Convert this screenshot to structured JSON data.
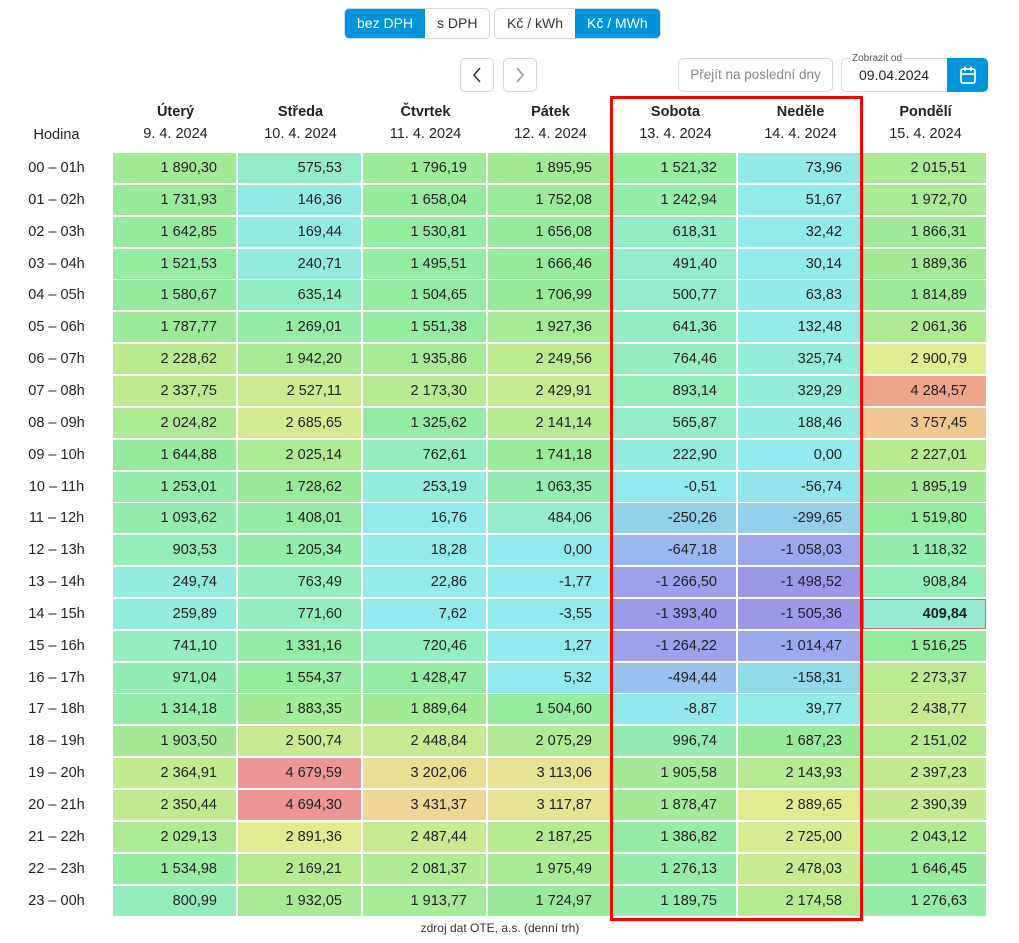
{
  "toolbar": {
    "vat": [
      {
        "label": "bez DPH",
        "active": true
      },
      {
        "label": "s DPH",
        "active": false
      }
    ],
    "unit": [
      {
        "label": "Kč / kWh",
        "active": false
      },
      {
        "label": "Kč / MWh",
        "active": true
      }
    ],
    "goto_latest": "Přejít na poslední dny",
    "date_label": "Zobrazit od",
    "date_value": "09.04.2024"
  },
  "table": {
    "hour_header": "Hodina",
    "days": [
      {
        "name": "Úterý",
        "date": "9. 4. 2024"
      },
      {
        "name": "Středa",
        "date": "10. 4. 2024"
      },
      {
        "name": "Čtvrtek",
        "date": "11. 4. 2024"
      },
      {
        "name": "Pátek",
        "date": "12. 4. 2024"
      },
      {
        "name": "Sobota",
        "date": "13. 4. 2024"
      },
      {
        "name": "Neděle",
        "date": "14. 4. 2024"
      },
      {
        "name": "Pondělí",
        "date": "15. 4. 2024"
      }
    ],
    "hours": [
      "00 – 01h",
      "01 – 02h",
      "02 – 03h",
      "03 – 04h",
      "04 – 05h",
      "05 – 06h",
      "06 – 07h",
      "07 – 08h",
      "08 – 09h",
      "09 – 10h",
      "10 – 11h",
      "11 – 12h",
      "12 – 13h",
      "13 – 14h",
      "14 – 15h",
      "15 – 16h",
      "16 – 17h",
      "17 – 18h",
      "18 – 19h",
      "19 – 20h",
      "20 – 21h",
      "21 – 22h",
      "22 – 23h",
      "23 – 00h"
    ],
    "rows": [
      [
        "1 890,30",
        "575,53",
        "1 796,19",
        "1 895,95",
        "1 521,32",
        "73,96",
        "2 015,51"
      ],
      [
        "1 731,93",
        "146,36",
        "1 658,04",
        "1 752,08",
        "1 242,94",
        "51,67",
        "1 972,70"
      ],
      [
        "1 642,85",
        "169,44",
        "1 530,81",
        "1 656,08",
        "618,31",
        "32,42",
        "1 866,31"
      ],
      [
        "1 521,53",
        "240,71",
        "1 495,51",
        "1 666,46",
        "491,40",
        "30,14",
        "1 889,36"
      ],
      [
        "1 580,67",
        "635,14",
        "1 504,65",
        "1 706,99",
        "500,77",
        "63,83",
        "1 814,89"
      ],
      [
        "1 787,77",
        "1 269,01",
        "1 551,38",
        "1 927,36",
        "641,36",
        "132,48",
        "2 061,36"
      ],
      [
        "2 228,62",
        "1 942,20",
        "1 935,86",
        "2 249,56",
        "764,46",
        "325,74",
        "2 900,79"
      ],
      [
        "2 337,75",
        "2 527,11",
        "2 173,30",
        "2 429,91",
        "893,14",
        "329,29",
        "4 284,57"
      ],
      [
        "2 024,82",
        "2 685,65",
        "1 325,62",
        "2 141,14",
        "565,87",
        "188,46",
        "3 757,45"
      ],
      [
        "1 644,88",
        "2 025,14",
        "762,61",
        "1 741,18",
        "222,90",
        "0,00",
        "2 227,01"
      ],
      [
        "1 253,01",
        "1 728,62",
        "253,19",
        "1 063,35",
        "-0,51",
        "-56,74",
        "1 895,19"
      ],
      [
        "1 093,62",
        "1 408,01",
        "16,76",
        "484,06",
        "-250,26",
        "-299,65",
        "1 519,80"
      ],
      [
        "903,53",
        "1 205,34",
        "18,28",
        "0,00",
        "-647,18",
        "-1 058,03",
        "1 118,32"
      ],
      [
        "249,74",
        "763,49",
        "22,86",
        "-1,77",
        "-1 266,50",
        "-1 498,52",
        "908,84"
      ],
      [
        "259,89",
        "771,60",
        "7,62",
        "-3,55",
        "-1 393,40",
        "-1 505,36",
        "409,84"
      ],
      [
        "741,10",
        "1 331,16",
        "720,46",
        "1,27",
        "-1 264,22",
        "-1 014,47",
        "1 516,25"
      ],
      [
        "971,04",
        "1 554,37",
        "1 428,47",
        "5,32",
        "-494,44",
        "-158,31",
        "2 273,37"
      ],
      [
        "1 314,18",
        "1 883,35",
        "1 889,64",
        "1 504,60",
        "-8,87",
        "39,77",
        "2 438,77"
      ],
      [
        "1 903,50",
        "2 500,74",
        "2 448,84",
        "2 075,29",
        "996,74",
        "1 687,23",
        "2 151,02"
      ],
      [
        "2 364,91",
        "4 679,59",
        "3 202,06",
        "3 113,06",
        "1 905,58",
        "2 143,93",
        "2 397,23"
      ],
      [
        "2 350,44",
        "4 694,30",
        "3 431,37",
        "3 117,87",
        "1 878,47",
        "2 889,65",
        "2 390,39"
      ],
      [
        "2 029,13",
        "2 891,36",
        "2 487,44",
        "2 187,25",
        "1 386,82",
        "2 725,00",
        "2 043,12"
      ],
      [
        "1 534,98",
        "2 169,21",
        "2 081,37",
        "1 975,49",
        "1 276,13",
        "2 478,03",
        "1 646,45"
      ],
      [
        "800,99",
        "1 932,05",
        "1 913,77",
        "1 724,97",
        "1 189,75",
        "2 174,58",
        "1 276,63"
      ]
    ],
    "current_cell": {
      "row": 14,
      "col": 6
    }
  },
  "footer": "zdroj dat OTE, a.s. (denní trh)",
  "colors": {
    "accent": "#0095db",
    "highlight_box": "#ff0000"
  }
}
